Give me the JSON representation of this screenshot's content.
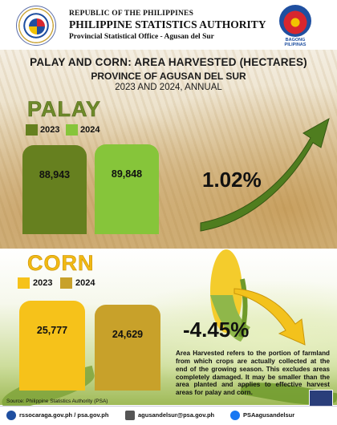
{
  "header": {
    "line1": "REPUBLIC OF THE PHILIPPINES",
    "line2": "PHILIPPINE STATISTICS AUTHORITY",
    "line3": "Provincial Statistical Office - Agusan del Sur",
    "right_logo_caption": "BAGONG PILIPINAS",
    "left_logo_icon": "psa-seal-icon"
  },
  "titles": {
    "main": "PALAY AND CORN: AREA HARVESTED (HECTARES)",
    "province": "PROVINCE OF AGUSAN DEL SUR",
    "period": "2023 AND 2024, ANNUAL"
  },
  "chart_data": [
    {
      "type": "bar",
      "title": "PALAY",
      "categories": [
        "2023",
        "2024"
      ],
      "values": [
        88943,
        89848
      ],
      "value_labels": [
        "88,943",
        "89,848"
      ],
      "colors": [
        "#66801f",
        "#86c53a"
      ],
      "change": "1.02%",
      "trend": "up"
    },
    {
      "type": "bar",
      "title": "CORN",
      "categories": [
        "2023",
        "2024"
      ],
      "values": [
        25777,
        24629
      ],
      "value_labels": [
        "25,777",
        "24,629"
      ],
      "colors": [
        "#f6c21a",
        "#c8a12a"
      ],
      "change": "-4.45%",
      "trend": "down"
    }
  ],
  "note": "Area Harvested refers to the portion of farmland from which crops are actually collected at the end of the growing season. This excludes areas completely damaged. It may be smaller than the area planted and applies to effective harvest areas for palay and corn.",
  "source": "Source: Philippine Statistics Authority (PSA)",
  "footer": {
    "web": "rssocaraga.gov.ph / psa.gov.ph",
    "email": "agusandelsur@psa.gov.ph",
    "facebook": "PSAagusandelsur"
  }
}
